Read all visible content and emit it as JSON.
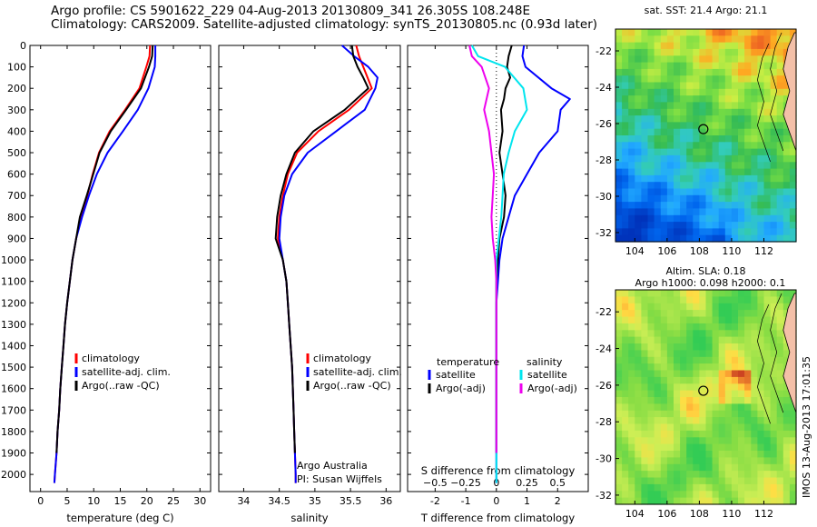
{
  "header": {
    "line1": "Argo profile: CS 5901622_229 04-Aug-2013 20130809_341 26.305S 108.248E",
    "line2": "Climatology: CARS2009. Satellite-adjusted climatology: synTS_20130805.nc (0.93d later)"
  },
  "footer_stamp": "IMOS 13-Aug-2013 17:01:35",
  "colors": {
    "climatology": "#ff0000",
    "satellite": "#0000ff",
    "argo": "#000000",
    "salinity_satellite": "#00e5ee",
    "salinity_argo": "#ee00ee"
  },
  "chart_data": [
    {
      "id": "temperature",
      "type": "line",
      "xlabel": "temperature (deg C)",
      "ylabel": "",
      "xlim": [
        -2,
        32
      ],
      "ylim": [
        2080,
        0
      ],
      "xticks": [
        0,
        5,
        10,
        15,
        20,
        25,
        30
      ],
      "yticks": [
        0,
        100,
        200,
        300,
        400,
        500,
        600,
        700,
        800,
        900,
        1000,
        1100,
        1200,
        1300,
        1400,
        1500,
        1600,
        1700,
        1800,
        1900,
        2000
      ],
      "legend": [
        "climatology",
        "satellite-adj. clim.",
        "Argo(..raw -QC)"
      ],
      "series": [
        {
          "name": "climatology",
          "color": "#ff0000",
          "points": [
            [
              20.6,
              0
            ],
            [
              20.5,
              50
            ],
            [
              19.9,
              100
            ],
            [
              18.6,
              200
            ],
            [
              15.9,
              300
            ],
            [
              13.0,
              400
            ],
            [
              11.0,
              500
            ],
            [
              9.8,
              600
            ],
            [
              8.8,
              700
            ],
            [
              7.6,
              800
            ],
            [
              6.7,
              900
            ],
            [
              6.0,
              1000
            ],
            [
              5.5,
              1100
            ],
            [
              5.0,
              1200
            ],
            [
              4.6,
              1300
            ],
            [
              4.3,
              1400
            ],
            [
              4.0,
              1500
            ],
            [
              3.7,
              1600
            ],
            [
              3.5,
              1700
            ],
            [
              3.2,
              1800
            ],
            [
              3.0,
              1900
            ],
            [
              2.7,
              2000
            ],
            [
              2.6,
              2040
            ]
          ]
        },
        {
          "name": "satellite-adj. clim.",
          "color": "#0000ff",
          "points": [
            [
              21.6,
              0
            ],
            [
              21.6,
              50
            ],
            [
              21.5,
              100
            ],
            [
              20.3,
              200
            ],
            [
              18.3,
              300
            ],
            [
              15.5,
              400
            ],
            [
              12.6,
              500
            ],
            [
              10.6,
              600
            ],
            [
              9.1,
              700
            ],
            [
              7.8,
              800
            ],
            [
              6.7,
              900
            ],
            [
              6.0,
              1000
            ],
            [
              5.5,
              1100
            ],
            [
              5.0,
              1200
            ],
            [
              4.6,
              1300
            ],
            [
              4.3,
              1400
            ],
            [
              4.0,
              1500
            ],
            [
              3.7,
              1600
            ],
            [
              3.5,
              1700
            ],
            [
              3.2,
              1800
            ],
            [
              3.0,
              1900
            ],
            [
              2.7,
              2000
            ],
            [
              2.6,
              2040
            ]
          ]
        },
        {
          "name": "Argo(..raw -QC)",
          "color": "#000000",
          "points": [
            [
              21.1,
              0
            ],
            [
              21.0,
              50
            ],
            [
              20.4,
              100
            ],
            [
              18.9,
              200
            ],
            [
              16.1,
              300
            ],
            [
              13.2,
              400
            ],
            [
              11.1,
              500
            ],
            [
              9.9,
              600
            ],
            [
              8.7,
              700
            ],
            [
              7.4,
              800
            ],
            [
              6.7,
              900
            ],
            [
              6.0,
              1000
            ],
            [
              5.5,
              1100
            ],
            [
              5.0,
              1200
            ],
            [
              4.6,
              1300
            ],
            [
              4.3,
              1400
            ],
            [
              4.0,
              1500
            ],
            [
              3.7,
              1600
            ],
            [
              3.5,
              1700
            ],
            [
              3.2,
              1800
            ],
            [
              3.0,
              1900
            ]
          ]
        }
      ]
    },
    {
      "id": "salinity",
      "type": "line",
      "xlabel": "salinity",
      "ylabel": "",
      "xlim": [
        33.65,
        36.2
      ],
      "ylim": [
        2080,
        0
      ],
      "xticks": [
        34,
        34.5,
        35,
        35.5,
        36
      ],
      "xticklabels": [
        "34",
        "34.5",
        "35",
        "35.5",
        "36"
      ],
      "legend": [
        "climatology",
        "satellite-adj. clim.",
        "Argo(..raw -QC)"
      ],
      "annotations": [
        "Argo Australia",
        "PI: Susan Wijffels"
      ],
      "series": [
        {
          "name": "climatology",
          "color": "#ff0000",
          "points": [
            [
              35.58,
              0
            ],
            [
              35.62,
              50
            ],
            [
              35.68,
              100
            ],
            [
              35.74,
              150
            ],
            [
              35.8,
              200
            ],
            [
              35.48,
              300
            ],
            [
              35.05,
              400
            ],
            [
              34.75,
              500
            ],
            [
              34.62,
              600
            ],
            [
              34.55,
              700
            ],
            [
              34.5,
              800
            ],
            [
              34.48,
              900
            ],
            [
              34.55,
              1000
            ],
            [
              34.6,
              1100
            ],
            [
              34.62,
              1200
            ],
            [
              34.64,
              1300
            ],
            [
              34.66,
              1400
            ],
            [
              34.68,
              1500
            ],
            [
              34.69,
              1600
            ],
            [
              34.7,
              1700
            ],
            [
              34.71,
              1800
            ],
            [
              34.72,
              1900
            ],
            [
              34.73,
              2000
            ],
            [
              34.73,
              2040
            ]
          ]
        },
        {
          "name": "satellite-adj. clim.",
          "color": "#0000ff",
          "points": [
            [
              35.38,
              0
            ],
            [
              35.55,
              50
            ],
            [
              35.75,
              100
            ],
            [
              35.88,
              150
            ],
            [
              35.85,
              200
            ],
            [
              35.7,
              300
            ],
            [
              35.3,
              400
            ],
            [
              34.9,
              500
            ],
            [
              34.68,
              600
            ],
            [
              34.57,
              700
            ],
            [
              34.52,
              800
            ],
            [
              34.5,
              900
            ],
            [
              34.55,
              1000
            ],
            [
              34.6,
              1100
            ],
            [
              34.62,
              1200
            ],
            [
              34.64,
              1300
            ],
            [
              34.66,
              1400
            ],
            [
              34.68,
              1500
            ],
            [
              34.69,
              1600
            ],
            [
              34.7,
              1700
            ],
            [
              34.71,
              1800
            ],
            [
              34.72,
              1900
            ],
            [
              34.73,
              2000
            ],
            [
              34.73,
              2040
            ]
          ]
        },
        {
          "name": "Argo(..raw -QC)",
          "color": "#000000",
          "points": [
            [
              35.52,
              0
            ],
            [
              35.54,
              50
            ],
            [
              35.6,
              100
            ],
            [
              35.68,
              150
            ],
            [
              35.75,
              200
            ],
            [
              35.42,
              300
            ],
            [
              34.98,
              400
            ],
            [
              34.72,
              500
            ],
            [
              34.6,
              600
            ],
            [
              34.52,
              700
            ],
            [
              34.47,
              800
            ],
            [
              34.45,
              900
            ],
            [
              34.55,
              1000
            ],
            [
              34.6,
              1100
            ],
            [
              34.62,
              1200
            ],
            [
              34.64,
              1300
            ],
            [
              34.66,
              1400
            ],
            [
              34.68,
              1500
            ],
            [
              34.69,
              1600
            ],
            [
              34.7,
              1700
            ],
            [
              34.71,
              1800
            ],
            [
              34.72,
              1900
            ]
          ]
        }
      ]
    },
    {
      "id": "difference",
      "type": "line",
      "xlabel": "T difference from climatology",
      "x2label": "S difference from climatology",
      "xlim": [
        -2.9,
        3.0
      ],
      "ylim": [
        2080,
        0
      ],
      "xticks": [
        -2,
        -1,
        0,
        1,
        2
      ],
      "x2ticks": [
        -0.5,
        -0.25,
        0,
        0.25,
        0.5
      ],
      "x2ticklabels": [
        "−0.5",
        "−0.25",
        "0",
        "0.25",
        "0.5"
      ],
      "legend_titles": [
        "temperature",
        "salinity"
      ],
      "legend": [
        "satellite",
        "Argo(-adj)",
        "satellite",
        "Argo(-adj)"
      ],
      "series": [
        {
          "name": "temperature satellite",
          "color": "#0000ff",
          "points": [
            [
              0.9,
              0
            ],
            [
              0.85,
              50
            ],
            [
              0.95,
              100
            ],
            [
              1.8,
              200
            ],
            [
              2.4,
              250
            ],
            [
              2.1,
              300
            ],
            [
              2.0,
              400
            ],
            [
              1.4,
              500
            ],
            [
              1.0,
              600
            ],
            [
              0.6,
              700
            ],
            [
              0.4,
              800
            ],
            [
              0.2,
              900
            ],
            [
              0.1,
              1000
            ],
            [
              0.05,
              1100
            ],
            [
              0,
              1200
            ],
            [
              0,
              1400
            ],
            [
              0,
              1600
            ],
            [
              0,
              1800
            ],
            [
              0,
              2040
            ]
          ]
        },
        {
          "name": "temperature Argo(-adj)",
          "color": "#000000",
          "points": [
            [
              0.5,
              0
            ],
            [
              0.4,
              50
            ],
            [
              0.35,
              100
            ],
            [
              0.45,
              150
            ],
            [
              0.3,
              200
            ],
            [
              0.25,
              250
            ],
            [
              0.15,
              300
            ],
            [
              0.2,
              400
            ],
            [
              0.1,
              500
            ],
            [
              0.2,
              600
            ],
            [
              0.3,
              700
            ],
            [
              0.25,
              800
            ],
            [
              0.1,
              900
            ],
            [
              0.05,
              1000
            ],
            [
              0,
              1100
            ],
            [
              0,
              1300
            ],
            [
              0,
              1500
            ],
            [
              0,
              1700
            ],
            [
              0,
              1900
            ]
          ]
        }
      ],
      "series2": [
        {
          "name": "salinity satellite",
          "color": "#00e5ee",
          "points": [
            [
              -0.2,
              0
            ],
            [
              -0.15,
              50
            ],
            [
              0.07,
              100
            ],
            [
              0.22,
              200
            ],
            [
              0.25,
              300
            ],
            [
              0.15,
              400
            ],
            [
              0.1,
              500
            ],
            [
              0.06,
              600
            ],
            [
              0.05,
              700
            ],
            [
              0.04,
              800
            ],
            [
              0.02,
              900
            ],
            [
              0,
              1000
            ],
            [
              0,
              1200
            ],
            [
              0,
              1400
            ],
            [
              0,
              1600
            ],
            [
              0,
              1800
            ],
            [
              0,
              2040
            ]
          ]
        },
        {
          "name": "salinity Argo(-adj)",
          "color": "#ee00ee",
          "points": [
            [
              -0.22,
              0
            ],
            [
              -0.2,
              50
            ],
            [
              -0.12,
              100
            ],
            [
              -0.06,
              200
            ],
            [
              -0.1,
              300
            ],
            [
              -0.06,
              400
            ],
            [
              -0.04,
              500
            ],
            [
              -0.02,
              600
            ],
            [
              -0.03,
              700
            ],
            [
              -0.04,
              800
            ],
            [
              -0.03,
              900
            ],
            [
              -0.01,
              1000
            ],
            [
              0,
              1100
            ],
            [
              0,
              1300
            ],
            [
              0,
              1500
            ],
            [
              0,
              1700
            ],
            [
              0,
              1900
            ]
          ]
        }
      ]
    },
    {
      "id": "sst_map",
      "type": "heatmap",
      "title": "sat. SST: 21.4 Argo: 21.1",
      "xlim": [
        102.8,
        114
      ],
      "ylim": [
        -32.5,
        -20.8
      ],
      "xticks": [
        104,
        106,
        108,
        110,
        112
      ],
      "yticks": [
        -22,
        -24,
        -26,
        -28,
        -30,
        -32
      ],
      "marker": [
        108.248,
        -26.305
      ]
    },
    {
      "id": "sla_map",
      "type": "heatmap",
      "title": "Altim. SLA: 0.18",
      "subtitle": "Argo h1000: 0.098 h2000: 0.1",
      "xlim": [
        102.8,
        114
      ],
      "ylim": [
        -32.5,
        -20.8
      ],
      "xticks": [
        104,
        106,
        108,
        110,
        112
      ],
      "yticks": [
        -22,
        -24,
        -26,
        -28,
        -30,
        -32
      ],
      "marker": [
        108.248,
        -26.305
      ]
    }
  ]
}
